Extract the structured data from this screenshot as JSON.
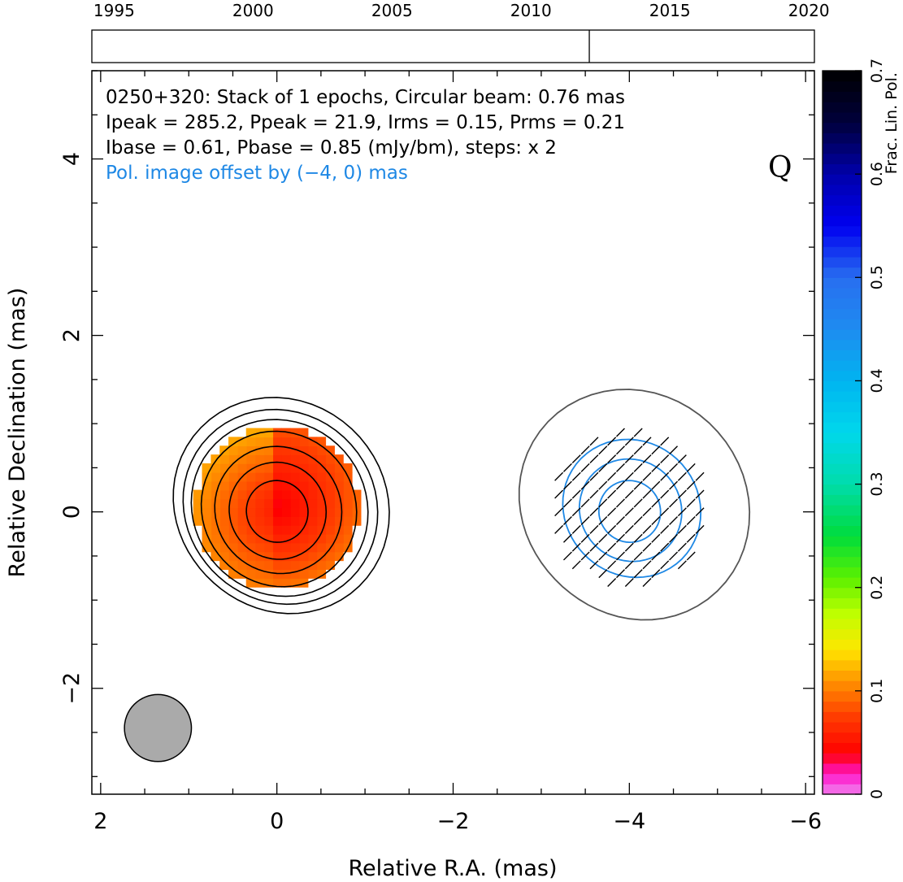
{
  "timeline": {
    "years": [
      "1995",
      "2000",
      "2005",
      "2010",
      "2015",
      "2020"
    ],
    "year_values": [
      1995,
      2000,
      2005,
      2010,
      2015,
      2020
    ],
    "range": [
      1994.2,
      2020.2
    ],
    "epoch_markers": [
      2012.1
    ]
  },
  "annotation": {
    "line1": "0250+320: Stack of 1 epochs, Circular beam: 0.76 mas",
    "line2": "Ipeak = 285.2, Ppeak = 21.9, Irms = 0.15, Prms = 0.21",
    "line3": "Ibase = 0.61, Pbase = 0.85 (mJy/bm), steps: x 2",
    "line4": "Pol. image offset by (−4, 0) mas",
    "quality_flag": "Q",
    "line4_color": "#1e88e5"
  },
  "colorbar": {
    "label": "Frac. Lin. Pol.",
    "ticks": [
      "0",
      "0.1",
      "0.2",
      "0.3",
      "0.4",
      "0.5",
      "0.6",
      "0.7"
    ],
    "range": [
      0,
      0.7
    ]
  },
  "chart_data": {
    "type": "heatmap",
    "title": "",
    "xlabel": "Relative R.A. (mas)",
    "ylabel": "Relative Declination (mas)",
    "xlim": [
      2.1,
      -6.1
    ],
    "ylim": [
      -3.2,
      5.0
    ],
    "x_ticks": [
      2,
      0,
      -2,
      -4,
      -6
    ],
    "x_tick_labels": [
      "2",
      "0",
      "−2",
      "−4",
      "−6"
    ],
    "y_ticks": [
      -2,
      0,
      2,
      4
    ],
    "y_tick_labels": [
      "−2",
      "0",
      "2",
      "4"
    ],
    "total_intensity_contours_mas": [
      0.35,
      0.55,
      0.72,
      0.88,
      1.0,
      1.1,
      1.22
    ],
    "polarization_offset_mas": [
      -4,
      0
    ],
    "pol_contours_mas": [
      0.35,
      0.58,
      0.78
    ],
    "pol_outer_contour_mas": 1.3,
    "frac_pol_peak": 0.09,
    "evpa_deg": 45,
    "beam_fwhm_mas": 0.76,
    "beam_center_mas": [
      1.35,
      -2.45
    ],
    "colors": {
      "stokes_i_contour": "#000000",
      "pol_contour": "#1e88e5",
      "outer_pol_contour": "#555555",
      "beam_fill": "#aaaaaa"
    }
  }
}
